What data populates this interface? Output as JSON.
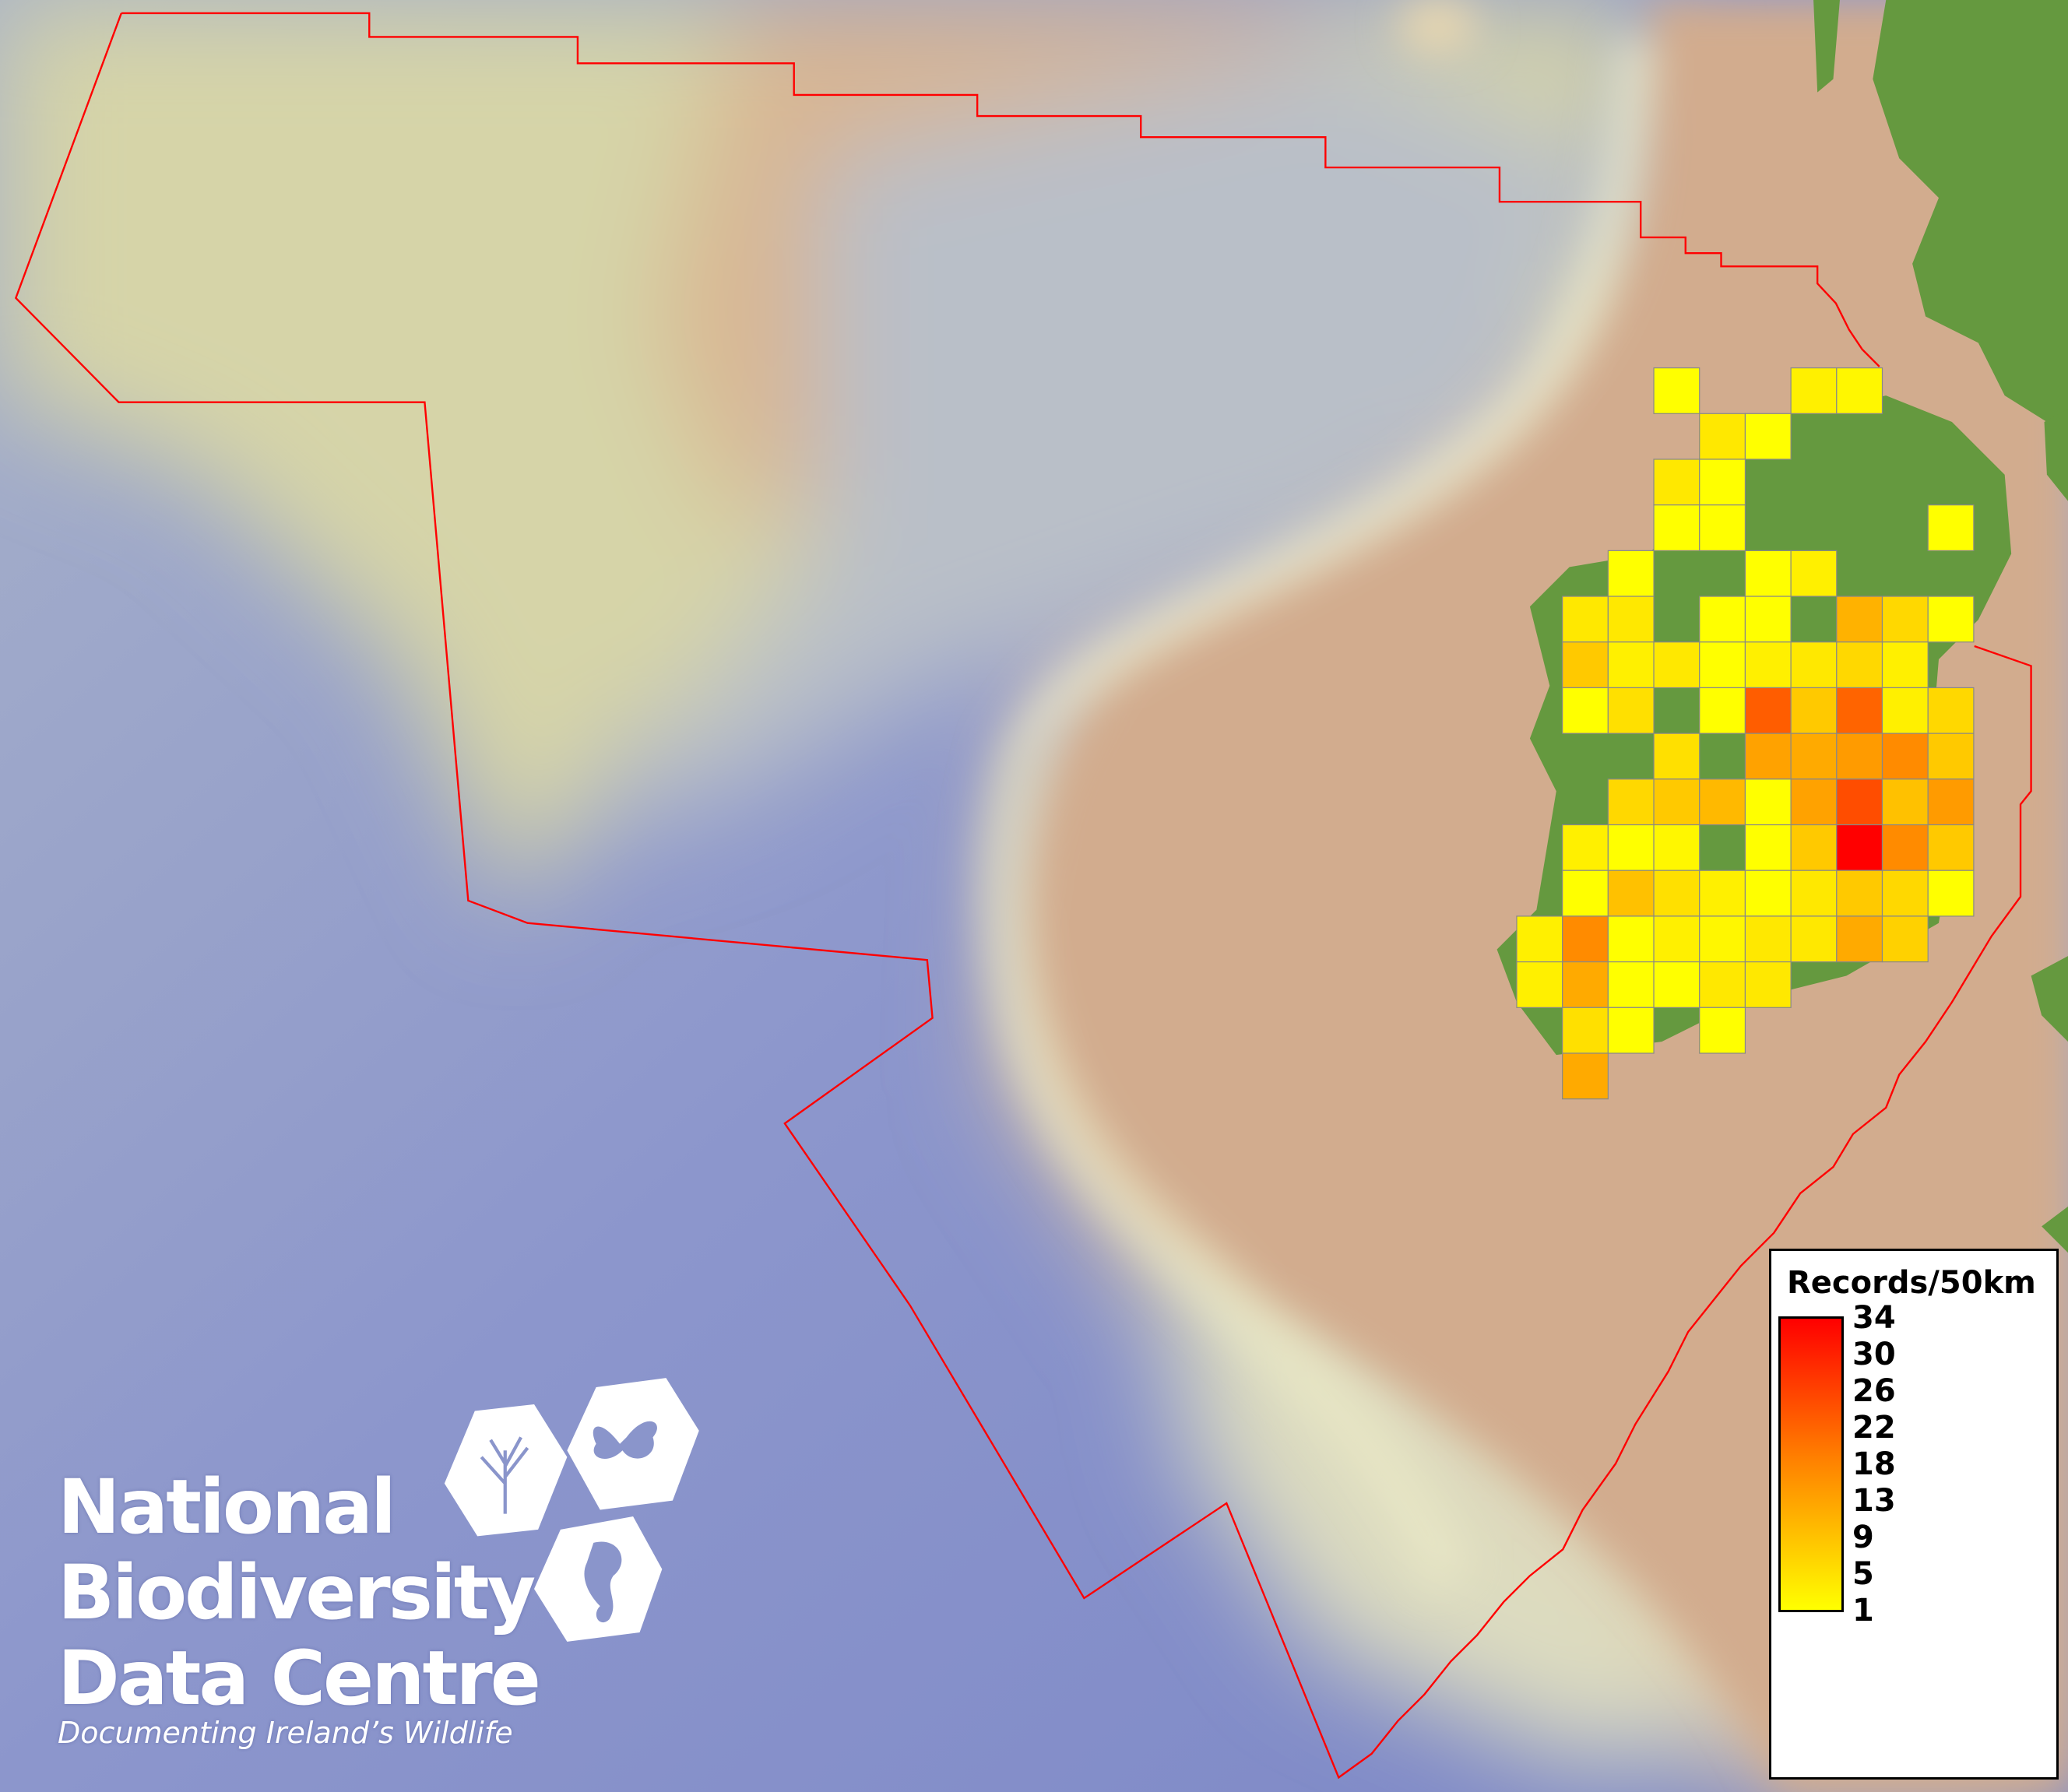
{
  "legend": {
    "title": "Records/50km",
    "ticks": [
      "34",
      "30",
      "26",
      "22",
      "18",
      "13",
      "9",
      "5",
      "1"
    ],
    "color_low": "#ffff00",
    "color_mid": "#ff8000",
    "color_high": "#ff0000"
  },
  "logo": {
    "line1": "National",
    "line2": "Biodiversity",
    "line3": "Data Centre",
    "tagline": "Documenting Ireland’s Wildlife"
  },
  "colors": {
    "boundary": "#ff0000",
    "land": "#65993f",
    "grid_border": "#888888"
  },
  "chart_data": {
    "type": "heatmap",
    "title": "Records/50km",
    "value_range": [
      1,
      34
    ],
    "cells": [
      {
        "row": 0,
        "col": 3,
        "value": 1
      },
      {
        "row": 0,
        "col": 6,
        "value": 3
      },
      {
        "row": 0,
        "col": 7,
        "value": 2
      },
      {
        "row": 1,
        "col": 4,
        "value": 4
      },
      {
        "row": 1,
        "col": 5,
        "value": 1
      },
      {
        "row": 2,
        "col": 3,
        "value": 4
      },
      {
        "row": 2,
        "col": 4,
        "value": 1
      },
      {
        "row": 3,
        "col": 3,
        "value": 1
      },
      {
        "row": 3,
        "col": 4,
        "value": 1
      },
      {
        "row": 3,
        "col": 9,
        "value": 1
      },
      {
        "row": 4,
        "col": 2,
        "value": 1
      },
      {
        "row": 4,
        "col": 5,
        "value": 1
      },
      {
        "row": 4,
        "col": 6,
        "value": 3
      },
      {
        "row": 5,
        "col": 1,
        "value": 4
      },
      {
        "row": 5,
        "col": 2,
        "value": 4
      },
      {
        "row": 5,
        "col": 4,
        "value": 1
      },
      {
        "row": 5,
        "col": 5,
        "value": 1
      },
      {
        "row": 5,
        "col": 7,
        "value": 11
      },
      {
        "row": 5,
        "col": 8,
        "value": 6
      },
      {
        "row": 5,
        "col": 9,
        "value": 1
      },
      {
        "row": 6,
        "col": 1,
        "value": 8
      },
      {
        "row": 6,
        "col": 2,
        "value": 3
      },
      {
        "row": 6,
        "col": 3,
        "value": 4
      },
      {
        "row": 6,
        "col": 4,
        "value": 1
      },
      {
        "row": 6,
        "col": 5,
        "value": 3
      },
      {
        "row": 6,
        "col": 6,
        "value": 4
      },
      {
        "row": 6,
        "col": 7,
        "value": 6
      },
      {
        "row": 6,
        "col": 8,
        "value": 3
      },
      {
        "row": 7,
        "col": 1,
        "value": 1
      },
      {
        "row": 7,
        "col": 2,
        "value": 5
      },
      {
        "row": 7,
        "col": 4,
        "value": 1
      },
      {
        "row": 7,
        "col": 5,
        "value": 22
      },
      {
        "row": 7,
        "col": 6,
        "value": 8
      },
      {
        "row": 7,
        "col": 7,
        "value": 21
      },
      {
        "row": 7,
        "col": 8,
        "value": 3
      },
      {
        "row": 7,
        "col": 9,
        "value": 6
      },
      {
        "row": 8,
        "col": 3,
        "value": 5
      },
      {
        "row": 8,
        "col": 5,
        "value": 13
      },
      {
        "row": 8,
        "col": 6,
        "value": 12
      },
      {
        "row": 8,
        "col": 7,
        "value": 14
      },
      {
        "row": 8,
        "col": 8,
        "value": 16
      },
      {
        "row": 8,
        "col": 9,
        "value": 8
      },
      {
        "row": 9,
        "col": 2,
        "value": 6
      },
      {
        "row": 9,
        "col": 3,
        "value": 8
      },
      {
        "row": 9,
        "col": 4,
        "value": 10
      },
      {
        "row": 9,
        "col": 5,
        "value": 1
      },
      {
        "row": 9,
        "col": 6,
        "value": 13
      },
      {
        "row": 9,
        "col": 7,
        "value": 24
      },
      {
        "row": 9,
        "col": 8,
        "value": 9
      },
      {
        "row": 9,
        "col": 9,
        "value": 14
      },
      {
        "row": 10,
        "col": 1,
        "value": 3
      },
      {
        "row": 10,
        "col": 2,
        "value": 1
      },
      {
        "row": 10,
        "col": 3,
        "value": 2
      },
      {
        "row": 10,
        "col": 5,
        "value": 1
      },
      {
        "row": 10,
        "col": 6,
        "value": 8
      },
      {
        "row": 10,
        "col": 7,
        "value": 34
      },
      {
        "row": 10,
        "col": 8,
        "value": 16
      },
      {
        "row": 10,
        "col": 9,
        "value": 8
      },
      {
        "row": 11,
        "col": 1,
        "value": 1
      },
      {
        "row": 11,
        "col": 2,
        "value": 9
      },
      {
        "row": 11,
        "col": 3,
        "value": 5
      },
      {
        "row": 11,
        "col": 4,
        "value": 3
      },
      {
        "row": 11,
        "col": 5,
        "value": 1
      },
      {
        "row": 11,
        "col": 6,
        "value": 4
      },
      {
        "row": 11,
        "col": 7,
        "value": 8
      },
      {
        "row": 11,
        "col": 8,
        "value": 6
      },
      {
        "row": 11,
        "col": 9,
        "value": 1
      },
      {
        "row": 12,
        "col": 0,
        "value": 3
      },
      {
        "row": 12,
        "col": 1,
        "value": 16
      },
      {
        "row": 12,
        "col": 2,
        "value": 1
      },
      {
        "row": 12,
        "col": 3,
        "value": 3
      },
      {
        "row": 12,
        "col": 4,
        "value": 2
      },
      {
        "row": 12,
        "col": 5,
        "value": 4
      },
      {
        "row": 12,
        "col": 6,
        "value": 4
      },
      {
        "row": 12,
        "col": 7,
        "value": 12
      },
      {
        "row": 12,
        "col": 8,
        "value": 7
      },
      {
        "row": 13,
        "col": 0,
        "value": 3
      },
      {
        "row": 13,
        "col": 1,
        "value": 12
      },
      {
        "row": 13,
        "col": 2,
        "value": 1
      },
      {
        "row": 13,
        "col": 3,
        "value": 1
      },
      {
        "row": 13,
        "col": 4,
        "value": 4
      },
      {
        "row": 13,
        "col": 5,
        "value": 4
      },
      {
        "row": 14,
        "col": 1,
        "value": 5
      },
      {
        "row": 14,
        "col": 2,
        "value": 1
      },
      {
        "row": 14,
        "col": 4,
        "value": 1
      },
      {
        "row": 15,
        "col": 1,
        "value": 12
      }
    ]
  }
}
